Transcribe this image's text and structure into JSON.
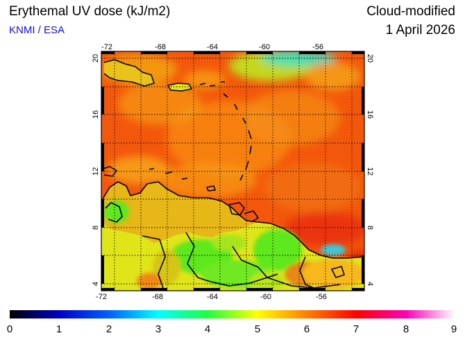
{
  "header": {
    "title": "Erythemal UV dose (kJ/m2)",
    "credit": "KNMI / ESA",
    "product": "Cloud-modified",
    "date": "1 April 2026"
  },
  "map": {
    "lon_range": [
      -73,
      -53
    ],
    "lat_range": [
      3.5,
      20.5
    ],
    "lon_ticks": [
      -72,
      -68,
      -64,
      -60,
      -56
    ],
    "lat_ticks": [
      4,
      8,
      12,
      16,
      20
    ],
    "lon_grid": [
      -72,
      -70,
      -68,
      -66,
      -64,
      -62,
      -60,
      -58,
      -56,
      -54
    ],
    "lat_grid": [
      4,
      6,
      8,
      10,
      12,
      14,
      16,
      18,
      20
    ],
    "lon_tick_labels": [
      "-72",
      "-68",
      "-64",
      "-60",
      "-56"
    ],
    "lat_tick_labels": [
      "4",
      "8",
      "12",
      "16",
      "20"
    ],
    "colors": {
      "ocean": "#f3570b",
      "land_low": "#5ee81c",
      "land_mid": "#d9e01a",
      "coast": "#000000"
    }
  },
  "colorbar": {
    "min": 0,
    "max": 9,
    "tick_labels": [
      "0",
      "1",
      "2",
      "3",
      "4",
      "5",
      "6",
      "7",
      "8",
      "9"
    ],
    "stops": [
      "#000000",
      "#0000c8",
      "#0060ff",
      "#00ffff",
      "#20ff40",
      "#ffff00",
      "#ff8000",
      "#ff0000",
      "#ff00b4",
      "#ffffff"
    ]
  }
}
